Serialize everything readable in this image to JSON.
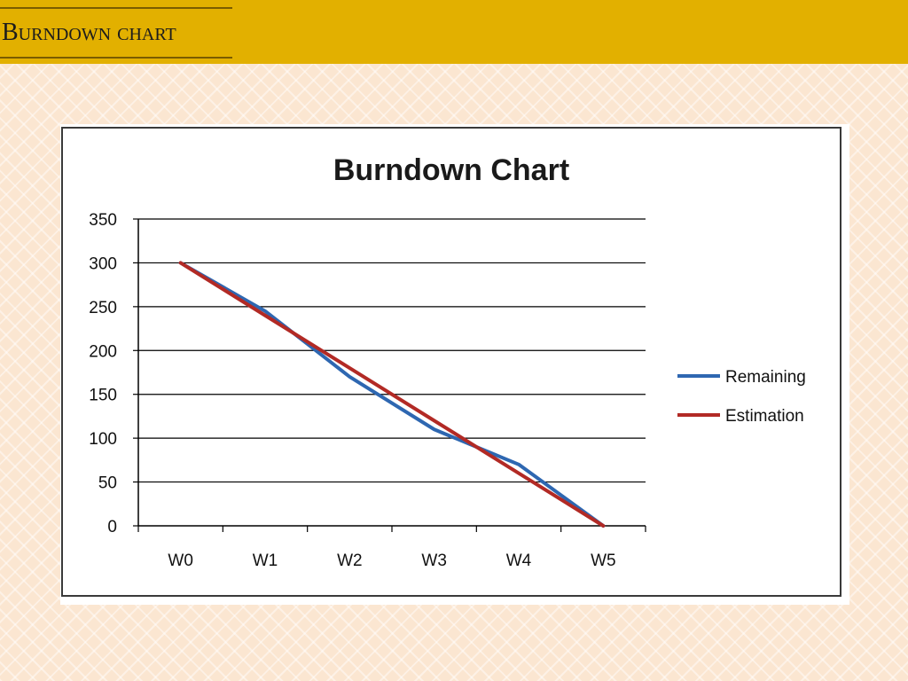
{
  "slide": {
    "title": "Burndown chart"
  },
  "colors": {
    "header_bar": "#e2b000",
    "remaining": "#2e67b1",
    "estimation": "#b22a25",
    "gridline": "#000000"
  },
  "chart_data": {
    "type": "line",
    "title": "Burndown Chart",
    "xlabel": "",
    "ylabel": "",
    "categories": [
      "W0",
      "W1",
      "W2",
      "W3",
      "W4",
      "W5"
    ],
    "y_ticks": [
      "0",
      "50",
      "100",
      "150",
      "200",
      "250",
      "300",
      "350"
    ],
    "ylim": [
      0,
      350
    ],
    "grid": true,
    "legend_position": "right",
    "series": [
      {
        "name": "Remaining",
        "color": "#2e67b1",
        "values": [
          300,
          245,
          170,
          110,
          70,
          0
        ]
      },
      {
        "name": "Estimation",
        "color": "#b22a25",
        "values": [
          300,
          240,
          180,
          120,
          60,
          0
        ]
      }
    ]
  }
}
